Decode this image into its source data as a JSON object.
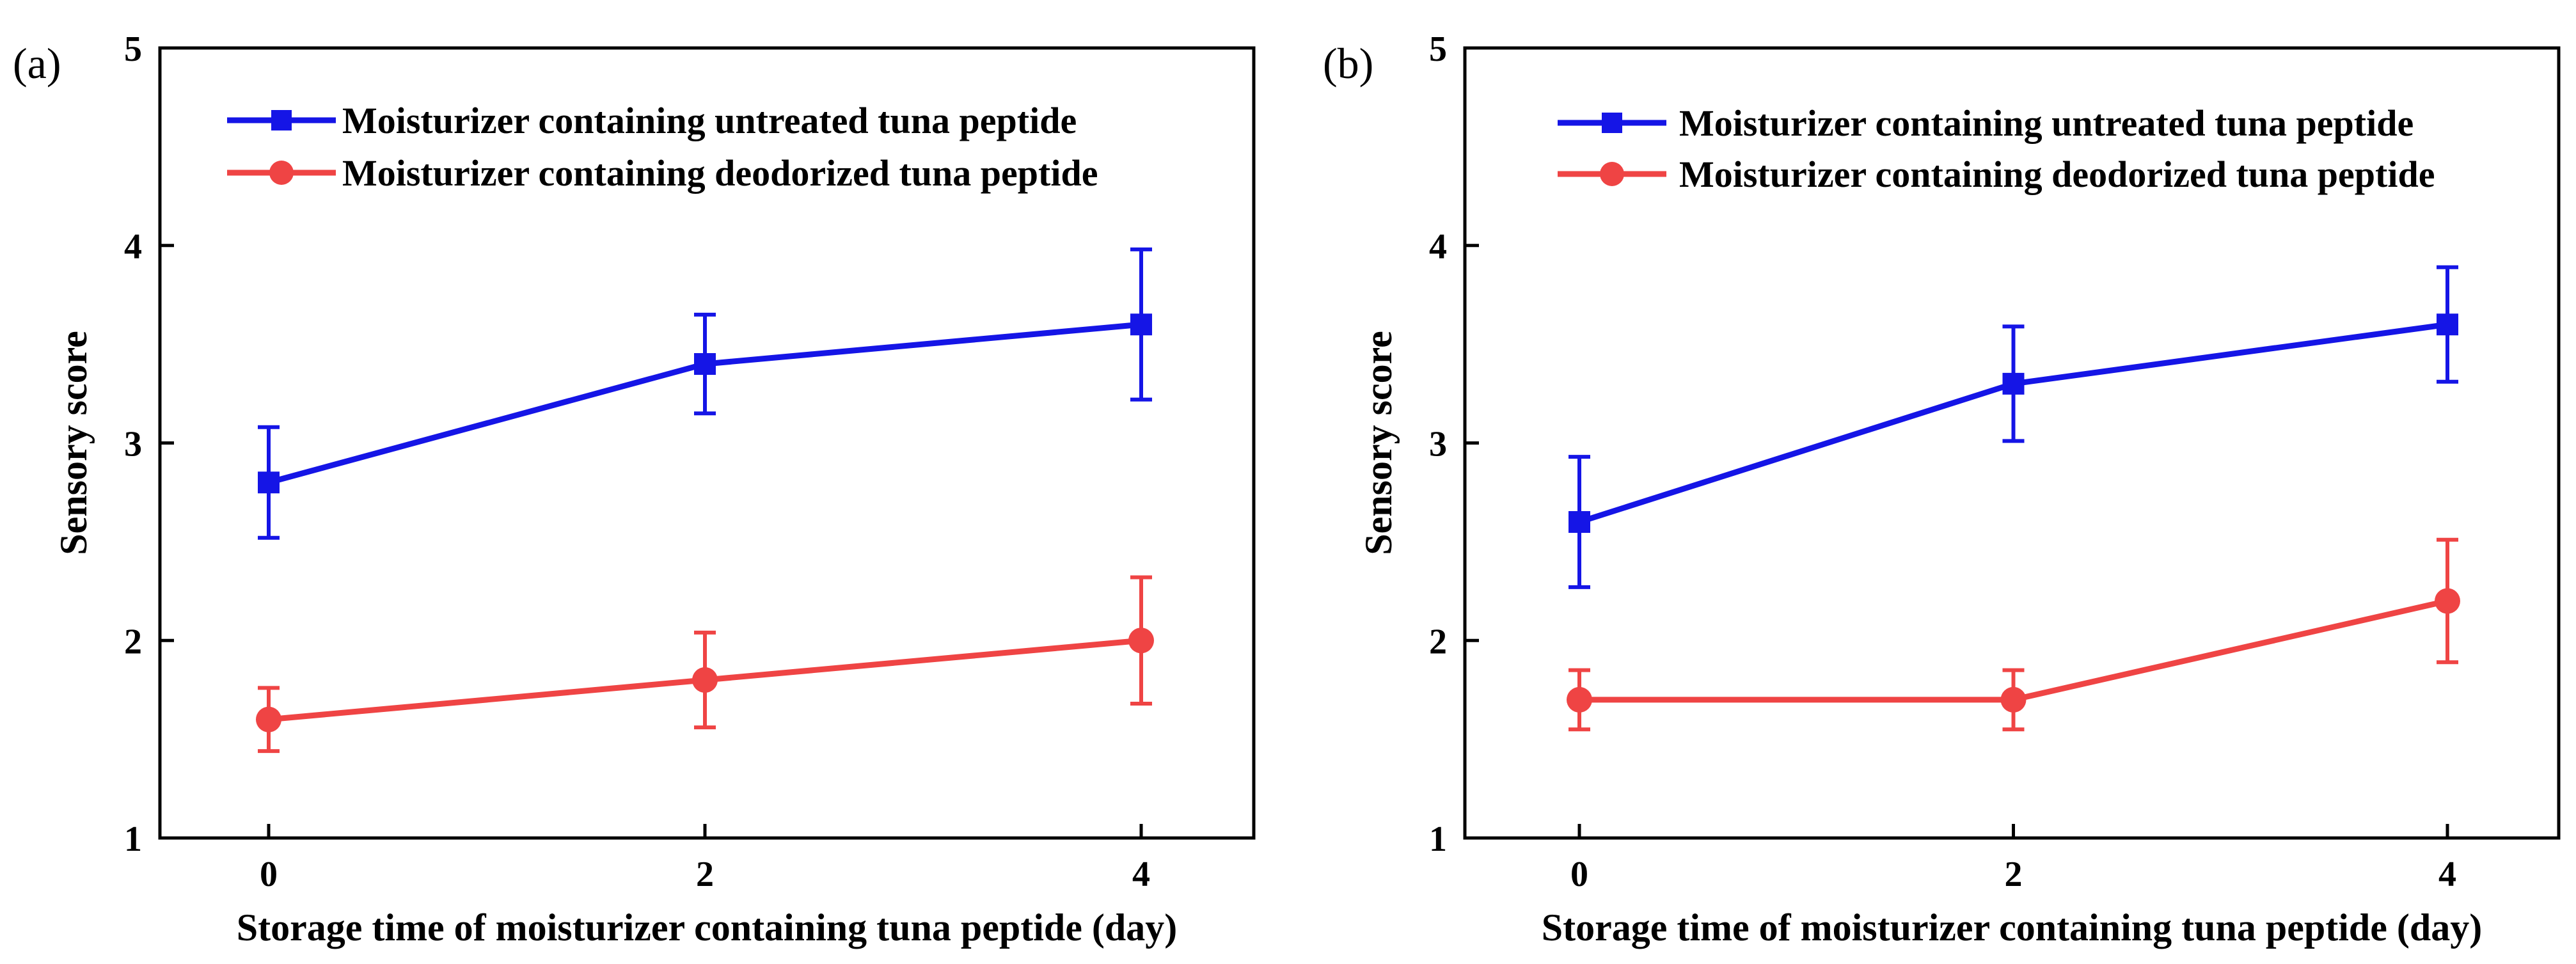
{
  "chart_data": [
    {
      "type": "line",
      "panel_label": "(a)",
      "xlabel": "Storage time of moisturizer containing tuna peptide (day)",
      "ylabel": "Sensory score",
      "x": [
        0,
        2,
        4
      ],
      "x_ticks": [
        "0",
        "2",
        "4"
      ],
      "ylim": [
        1,
        5
      ],
      "y_ticks": [
        "1",
        "2",
        "3",
        "4",
        "5"
      ],
      "legend_position": "top-left",
      "series": [
        {
          "name": "Moisturizer containing untreated tuna peptide",
          "color": "#1515e6",
          "marker": "square",
          "values": [
            2.8,
            3.4,
            3.6
          ],
          "errors": [
            0.28,
            0.25,
            0.38
          ]
        },
        {
          "name": "Moisturizer containing deodorized tuna peptide",
          "color": "#ef4444",
          "marker": "circle",
          "values": [
            1.6,
            1.8,
            2.0
          ],
          "errors": [
            0.16,
            0.24,
            0.32
          ]
        }
      ]
    },
    {
      "type": "line",
      "panel_label": "(b)",
      "xlabel": "Storage time of moisturizer containing tuna peptide (day)",
      "ylabel": "Sensory score",
      "x": [
        0,
        2,
        4
      ],
      "x_ticks": [
        "0",
        "2",
        "4"
      ],
      "ylim": [
        1,
        5
      ],
      "y_ticks": [
        "1",
        "2",
        "3",
        "4",
        "5"
      ],
      "legend_position": "top-left",
      "series": [
        {
          "name": "Moisturizer containing untreated tuna peptide",
          "color": "#1515e6",
          "marker": "square",
          "values": [
            2.6,
            3.3,
            3.6
          ],
          "errors": [
            0.33,
            0.29,
            0.29
          ]
        },
        {
          "name": "Moisturizer containing deodorized tuna peptide",
          "color": "#ef4444",
          "marker": "circle",
          "values": [
            1.7,
            1.7,
            2.2
          ],
          "errors": [
            0.15,
            0.15,
            0.31
          ]
        }
      ]
    }
  ]
}
